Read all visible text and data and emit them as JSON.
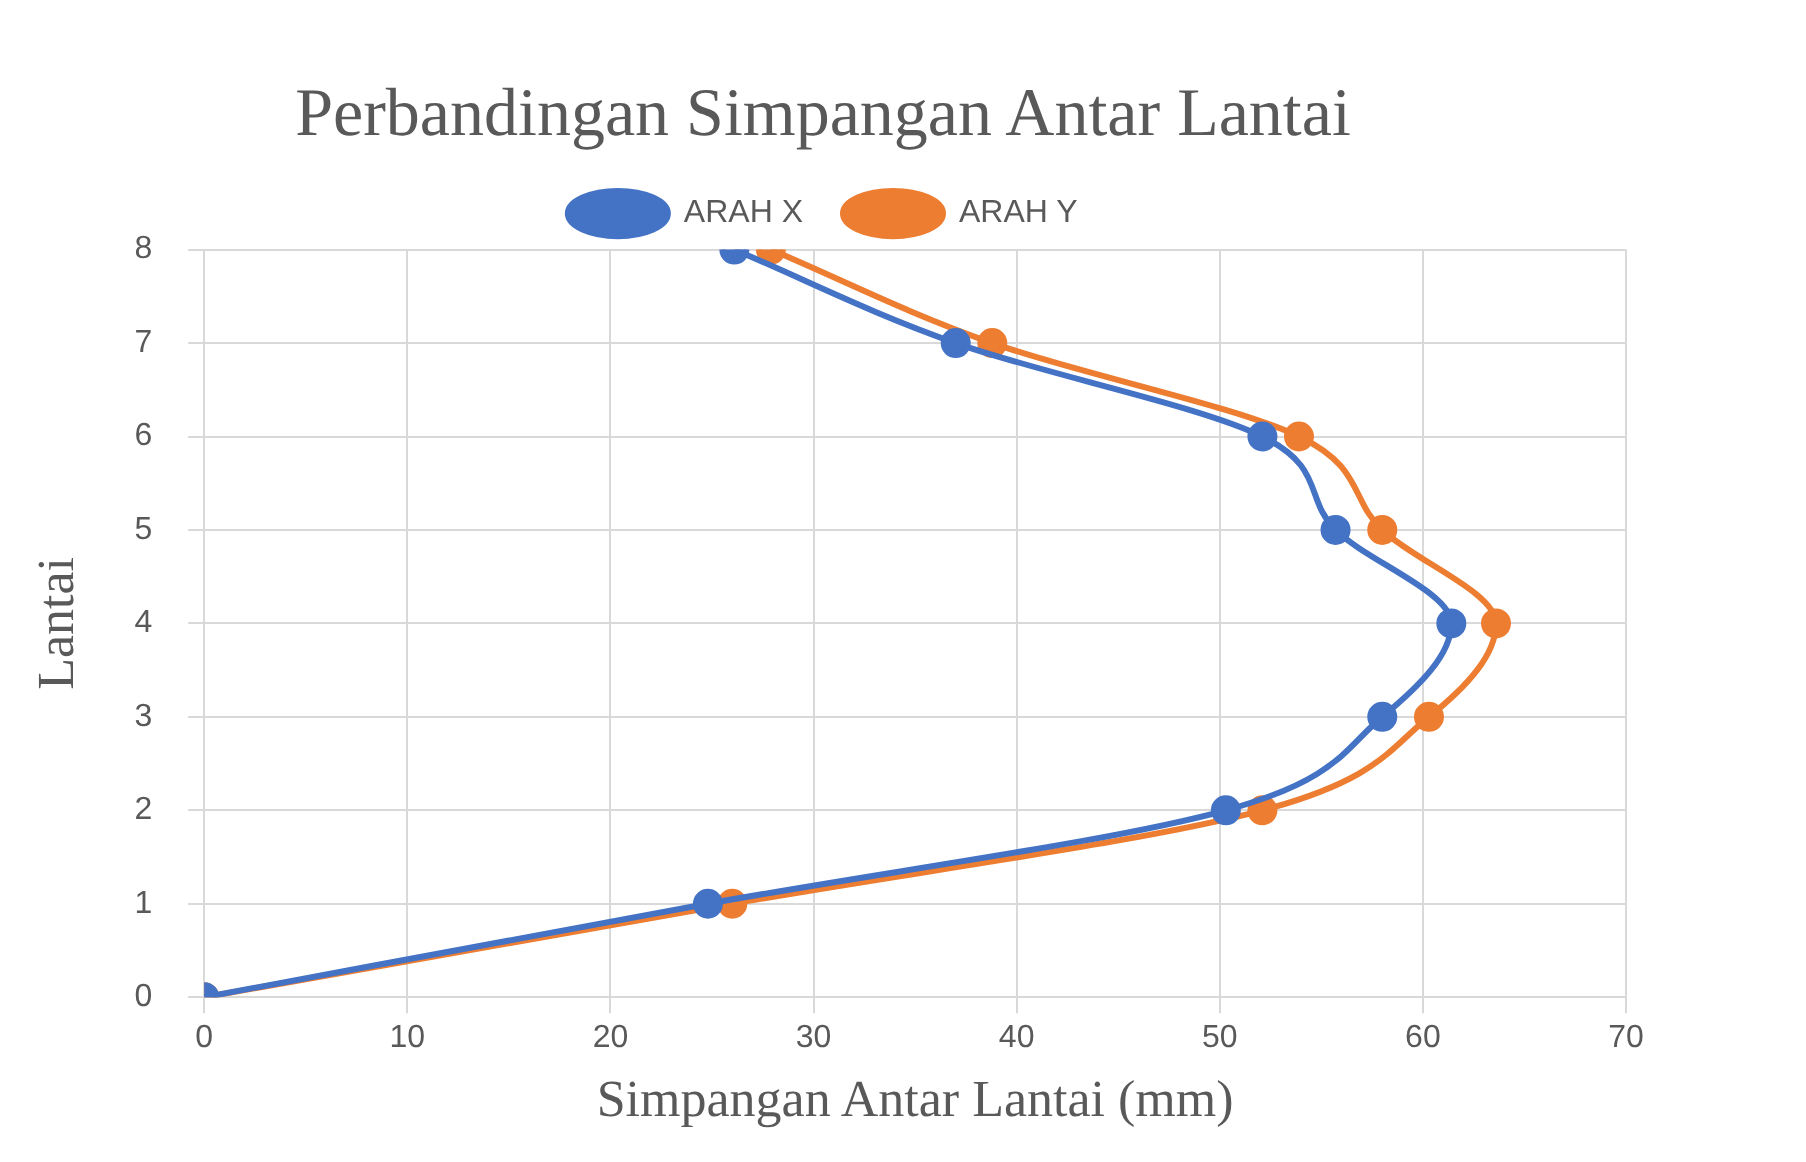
{
  "chart_data": {
    "type": "line",
    "title": "Perbandingan Simpangan Antar Lantai",
    "xlabel": "Simpangan Antar Lantai (mm)",
    "ylabel": "Lantai",
    "series": [
      {
        "name": "ARAH X",
        "color": "#4472c4",
        "x": [
          0,
          24.8,
          50.3,
          58.0,
          61.4,
          55.7,
          52.1,
          37.0,
          26.1
        ],
        "values": [
          0,
          1,
          2,
          3,
          4,
          5,
          6,
          7,
          8
        ]
      },
      {
        "name": "ARAH Y",
        "color": "#ed7d31",
        "x": [
          0,
          26.0,
          52.1,
          60.3,
          63.6,
          58.0,
          53.9,
          38.8,
          27.9
        ],
        "values": [
          0,
          1,
          2,
          3,
          4,
          5,
          6,
          7,
          8
        ]
      }
    ],
    "xlim": [
      0,
      70
    ],
    "xticks": [
      0,
      10,
      20,
      30,
      40,
      50,
      60,
      70
    ],
    "ylim": [
      0,
      8
    ],
    "yticks": [
      0,
      1,
      2,
      3,
      4,
      5,
      6,
      7,
      8
    ],
    "grid": true,
    "legend": "top",
    "marker": "circle",
    "line_style": "solid"
  }
}
